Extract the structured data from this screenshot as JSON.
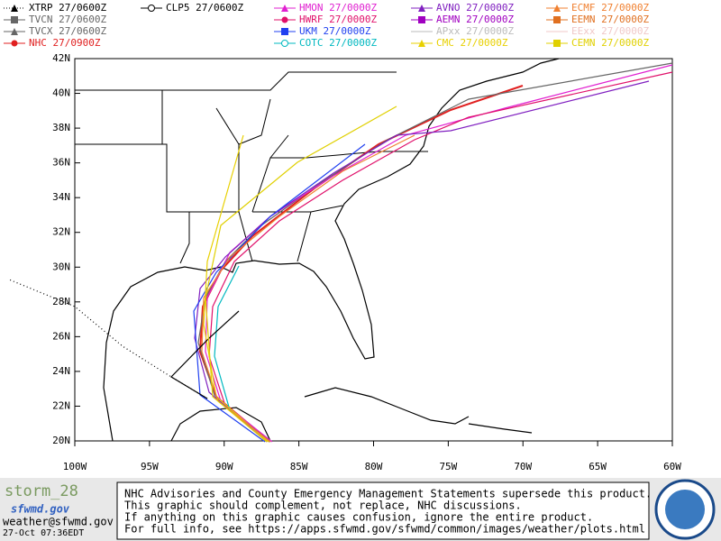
{
  "legend": [
    {
      "label": "XTRP 27/0600Z",
      "color": "#000000",
      "marker": "triangle"
    },
    {
      "label": "TVCN 27/0600Z",
      "color": "#666666",
      "marker": "square"
    },
    {
      "label": "TVCX 27/0600Z",
      "color": "#666666",
      "marker": "triangle"
    },
    {
      "label": "NHC 27/0900Z",
      "color": "#e02020",
      "marker": "circle"
    },
    {
      "label": "CLP5 27/0600Z",
      "color": "#000000",
      "marker": "ring"
    },
    {
      "label": "HMON 27/0000Z",
      "color": "#e020d0",
      "marker": "triangle"
    },
    {
      "label": "HWRF 27/0000Z",
      "color": "#e0106a",
      "marker": "circle"
    },
    {
      "label": "UKM 27/0000Z",
      "color": "#2040f0",
      "marker": "square"
    },
    {
      "label": "COTC 27/0000Z",
      "color": "#00b8c0",
      "marker": "ring"
    },
    {
      "label": "AVNO 27/0000Z",
      "color": "#8020c0",
      "marker": "triangle"
    },
    {
      "label": "AEMN 27/0000Z",
      "color": "#a000c0",
      "marker": "square"
    },
    {
      "label": "APxx 27/0000Z",
      "color": "#bbbbbb",
      "marker": "none"
    },
    {
      "label": "CMC 27/0000Z",
      "color": "#e8d000",
      "marker": "triangle"
    },
    {
      "label": "ECMF 27/0000Z",
      "color": "#f08030",
      "marker": "triangle"
    },
    {
      "label": "EEMN 27/0000Z",
      "color": "#e07020",
      "marker": "square"
    },
    {
      "label": "EExx 27/0000Z",
      "color": "#f0c8c8",
      "marker": "none"
    },
    {
      "label": "CEMN 27/0000Z",
      "color": "#e0d000",
      "marker": "square"
    }
  ],
  "lon_labels": [
    "100W",
    "95W",
    "90W",
    "85W",
    "80W",
    "75W",
    "70W",
    "65W",
    "60W"
  ],
  "lat_labels": [
    "42N",
    "40N",
    "38N",
    "36N",
    "34N",
    "32N",
    "30N",
    "28N",
    "26N",
    "24N",
    "22N",
    "20N"
  ],
  "footer": {
    "storm": "storm_28",
    "logo": "sfwmd.gov",
    "email": "weather@sfwmd.gov",
    "timestamp": "27-Oct 07:36EDT",
    "notice": [
      "NHC Advisories and County Emergency Management Statements supersede this product.",
      "This graphic should complement, not replace, NHC discussions.",
      "If anything on this graphic causes confusion, ignore the entire product.",
      "For full info, see  https://apps.sfwmd.gov/sfwmd/common/images/weather/plots.html"
    ]
  }
}
